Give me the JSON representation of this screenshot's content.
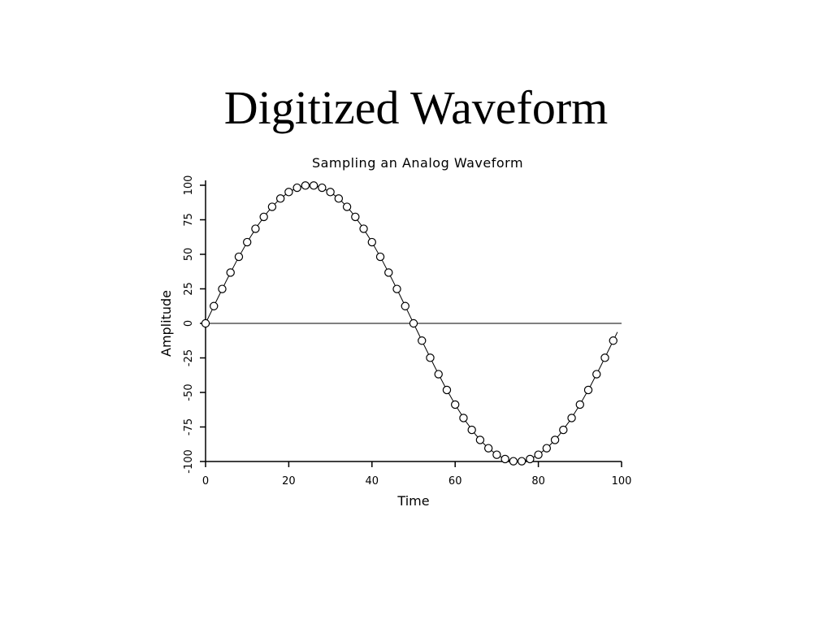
{
  "slide": {
    "title": "Digitized Waveform"
  },
  "chart_data": {
    "type": "line",
    "title": "Sampling an Analog Waveform",
    "xlabel": "Time",
    "ylabel": "Amplitude",
    "xlim": [
      0,
      100
    ],
    "ylim": [
      -100,
      100
    ],
    "x_ticks": [
      0,
      20,
      40,
      60,
      80,
      100
    ],
    "y_ticks": [
      -100,
      -75,
      -50,
      -25,
      0,
      25,
      50,
      75,
      100
    ],
    "grid": false,
    "baseline": 0,
    "colors": {
      "line": "#000000",
      "marker_fill": "#ffffff",
      "marker_stroke": "#000000"
    },
    "series": [
      {
        "style": "continuous-line",
        "x": [
          0,
          2.5,
          5,
          7.5,
          10,
          12.5,
          15,
          17.5,
          20,
          22.5,
          25,
          27.5,
          30,
          32.5,
          35,
          37.5,
          40,
          42.5,
          45,
          47.5,
          50,
          52.5,
          55,
          57.5,
          60,
          62.5,
          65,
          67.5,
          70,
          72.5,
          75,
          77.5,
          80,
          82.5,
          85,
          87.5,
          90,
          92.5,
          95,
          97.5,
          99
        ],
        "y": [
          0,
          15.6,
          30.9,
          45.4,
          58.8,
          70.7,
          80.9,
          89.1,
          95.1,
          98.8,
          100,
          98.8,
          95.1,
          89.1,
          80.9,
          70.7,
          58.8,
          45.4,
          30.9,
          15.6,
          0,
          -15.6,
          -30.9,
          -45.4,
          -58.8,
          -70.7,
          -80.9,
          -89.1,
          -95.1,
          -98.8,
          -100,
          -98.8,
          -95.1,
          -89.1,
          -80.9,
          -70.7,
          -58.8,
          -45.4,
          -30.9,
          -15.6,
          -6.3
        ]
      },
      {
        "style": "sample-markers",
        "x": [
          0,
          2,
          4,
          6,
          8,
          10,
          12,
          14,
          16,
          18,
          20,
          22,
          24,
          26,
          28,
          30,
          32,
          34,
          36,
          38,
          40,
          42,
          44,
          46,
          48,
          50,
          52,
          54,
          56,
          58,
          60,
          62,
          64,
          66,
          68,
          70,
          72,
          74,
          76,
          78,
          80,
          82,
          84,
          86,
          88,
          90,
          92,
          94,
          96,
          98
        ],
        "y": [
          0,
          12.5,
          24.9,
          36.8,
          48.2,
          58.8,
          68.5,
          77.1,
          84.4,
          90.4,
          95.1,
          98.2,
          99.8,
          99.8,
          98.2,
          95.1,
          90.4,
          84.4,
          77.1,
          68.5,
          58.8,
          48.2,
          36.8,
          24.9,
          12.5,
          0,
          -12.5,
          -24.9,
          -36.8,
          -48.2,
          -58.8,
          -68.5,
          -77.1,
          -84.4,
          -90.4,
          -95.1,
          -98.2,
          -99.8,
          -99.8,
          -98.2,
          -95.1,
          -90.4,
          -84.4,
          -77.1,
          -68.5,
          -58.8,
          -48.2,
          -36.8,
          -24.9,
          -12.5
        ]
      }
    ]
  }
}
